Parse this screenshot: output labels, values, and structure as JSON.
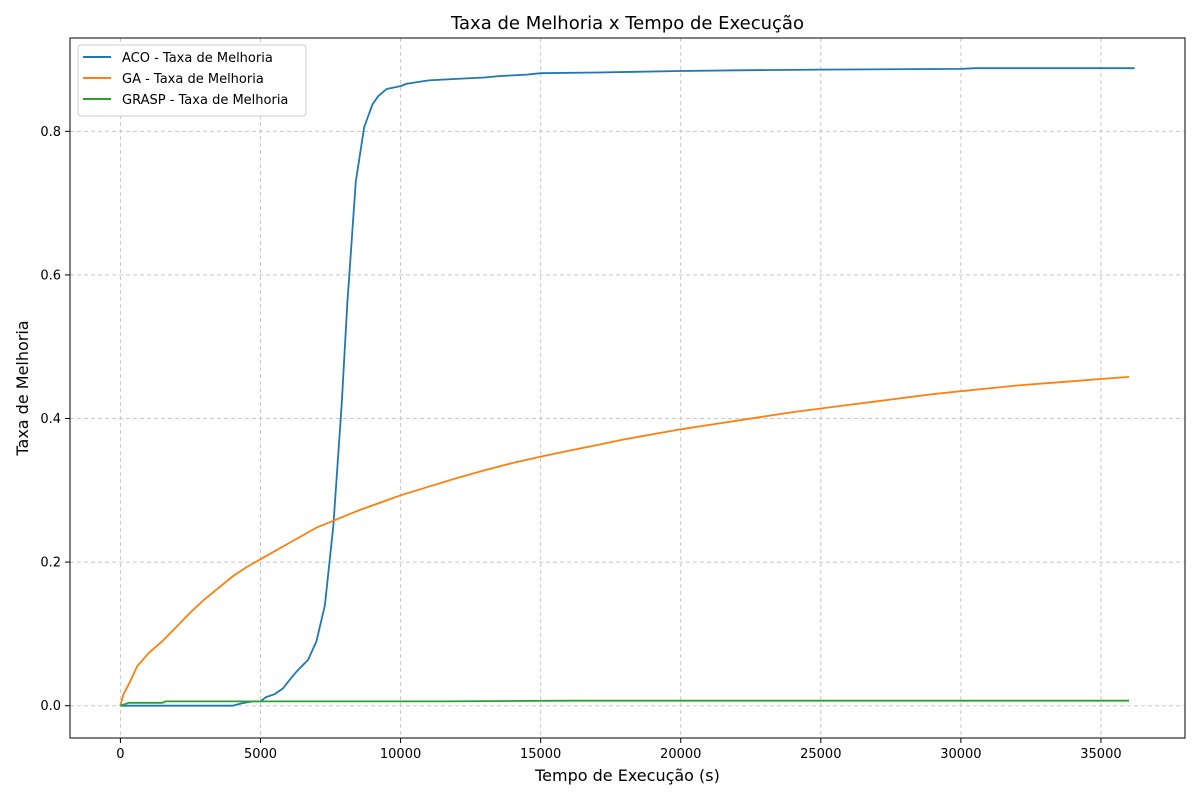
{
  "chart_data": {
    "type": "line",
    "title": "Taxa de Melhoria x Tempo de Execução",
    "xlabel": "Tempo de Execução (s)",
    "ylabel": "Taxa de Melhoria",
    "xlim": [
      -1800,
      38000
    ],
    "ylim": [
      -0.045,
      0.93
    ],
    "xticks": [
      0,
      5000,
      10000,
      15000,
      20000,
      25000,
      30000,
      35000
    ],
    "yticks": [
      0.0,
      0.2,
      0.4,
      0.6,
      0.8
    ],
    "xtick_labels": [
      "0",
      "5000",
      "10000",
      "15000",
      "20000",
      "25000",
      "30000",
      "35000"
    ],
    "ytick_labels": [
      "0.0",
      "0.2",
      "0.4",
      "0.6",
      "0.8"
    ],
    "grid": true,
    "legend_position": "upper-left",
    "series": [
      {
        "name": "ACO - Taxa de Melhoria",
        "color": "#1f77b4",
        "x": [
          0,
          1000,
          2000,
          3000,
          4000,
          4300,
          4700,
          5000,
          5100,
          5200,
          5500,
          5800,
          6000,
          6300,
          6700,
          7000,
          7300,
          7600,
          7900,
          8100,
          8400,
          8700,
          9000,
          9200,
          9500,
          10000,
          10200,
          11000,
          12000,
          13000,
          13500,
          14500,
          15000,
          17000,
          20000,
          22000,
          25000,
          30000,
          30500,
          36200
        ],
        "y": [
          0.0,
          0.0,
          0.0,
          0.0,
          0.0,
          0.003,
          0.006,
          0.006,
          0.009,
          0.012,
          0.016,
          0.024,
          0.034,
          0.048,
          0.064,
          0.09,
          0.14,
          0.25,
          0.42,
          0.56,
          0.73,
          0.806,
          0.838,
          0.849,
          0.859,
          0.863,
          0.866,
          0.871,
          0.873,
          0.875,
          0.877,
          0.879,
          0.881,
          0.882,
          0.884,
          0.885,
          0.886,
          0.887,
          0.888,
          0.888
        ]
      },
      {
        "name": "GA - Taxa de Melhoria",
        "color": "#ff7f0e",
        "x": [
          0,
          100,
          300,
          600,
          1000,
          1500,
          2000,
          2500,
          3000,
          3500,
          4000,
          4500,
          5000,
          5500,
          6000,
          6500,
          7000,
          7500,
          8000,
          8500,
          9000,
          10000,
          11000,
          12000,
          13000,
          14000,
          15000,
          16000,
          17000,
          18000,
          19000,
          20000,
          21000,
          22000,
          23000,
          24000,
          25000,
          26000,
          27000,
          28000,
          29000,
          30000,
          31000,
          32000,
          33000,
          34000,
          35000,
          36000
        ],
        "y": [
          0.0,
          0.015,
          0.03,
          0.055,
          0.073,
          0.09,
          0.11,
          0.13,
          0.148,
          0.164,
          0.18,
          0.193,
          0.204,
          0.215,
          0.226,
          0.237,
          0.248,
          0.256,
          0.264,
          0.272,
          0.279,
          0.293,
          0.305,
          0.317,
          0.328,
          0.338,
          0.347,
          0.355,
          0.363,
          0.371,
          0.378,
          0.385,
          0.391,
          0.397,
          0.403,
          0.409,
          0.414,
          0.419,
          0.424,
          0.429,
          0.434,
          0.438,
          0.442,
          0.446,
          0.449,
          0.452,
          0.455,
          0.458
        ]
      },
      {
        "name": "GRASP - Taxa de Melhoria",
        "color": "#2ca02c",
        "x": [
          0,
          300,
          1500,
          1600,
          5000,
          11500,
          16000,
          36000
        ],
        "y": [
          0.0,
          0.004,
          0.004,
          0.006,
          0.006,
          0.006,
          0.007,
          0.007
        ]
      }
    ]
  }
}
